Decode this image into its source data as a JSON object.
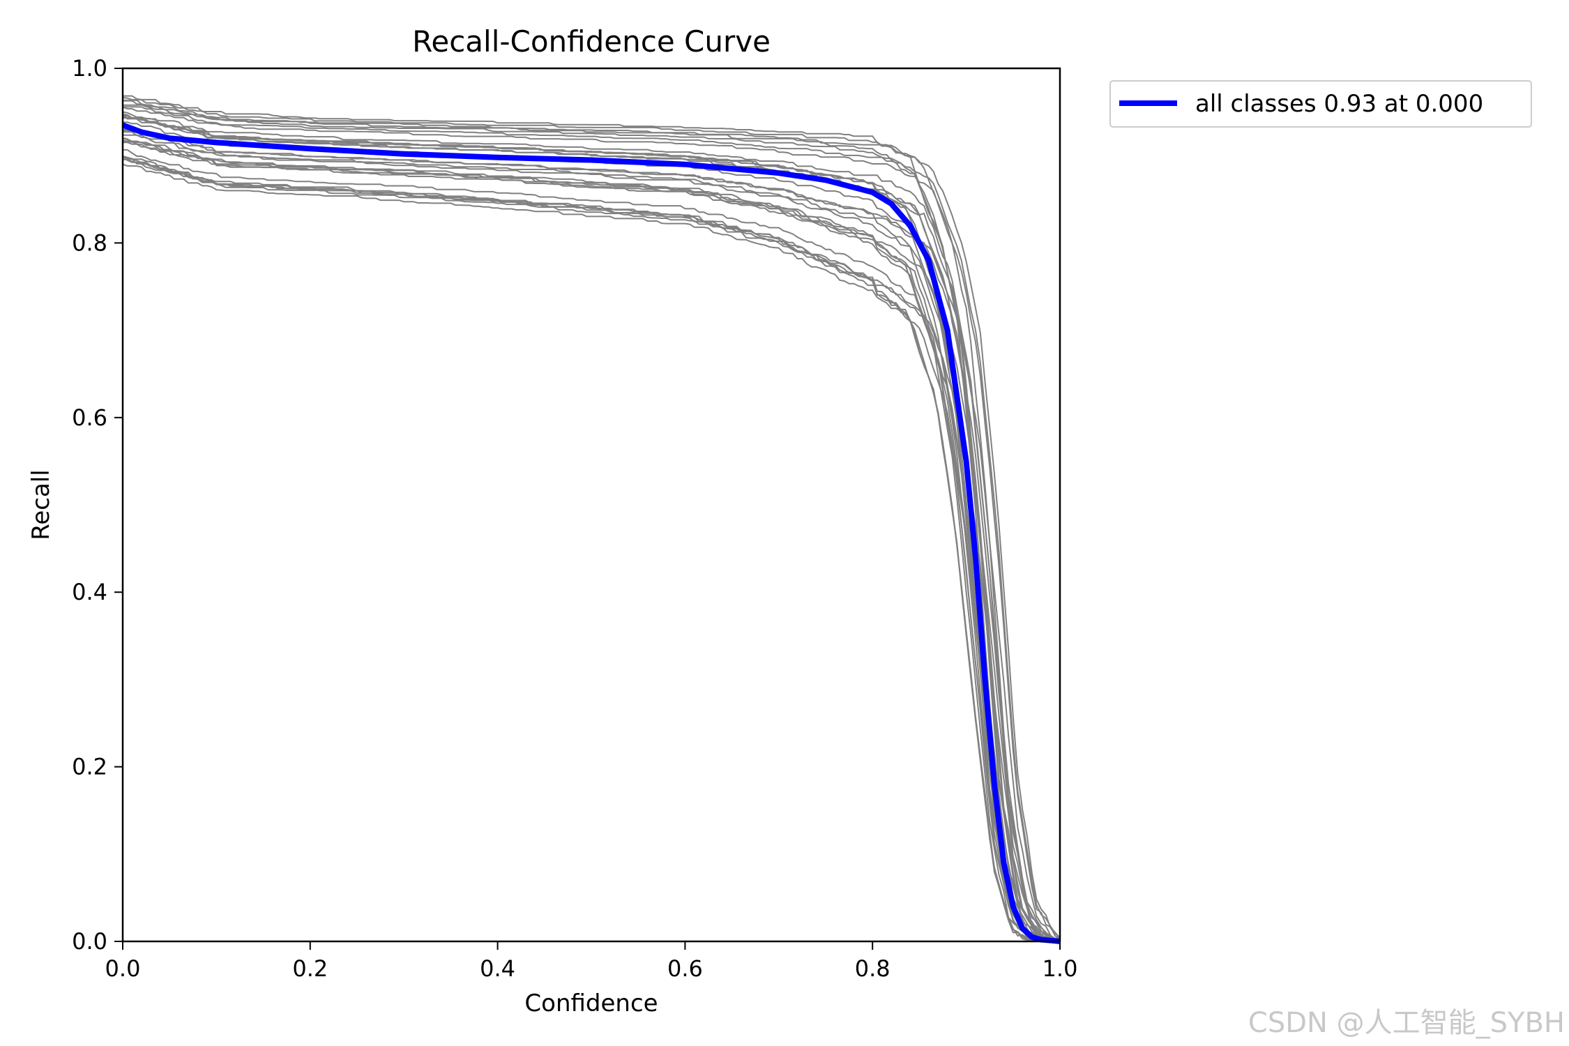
{
  "chart_data": {
    "type": "line",
    "title": "Recall-Confidence Curve",
    "xlabel": "Confidence",
    "ylabel": "Recall",
    "xlim": [
      0,
      1
    ],
    "ylim": [
      0,
      1
    ],
    "xticks": [
      "0.0",
      "0.2",
      "0.4",
      "0.6",
      "0.8",
      "1.0"
    ],
    "yticks": [
      "0.0",
      "0.2",
      "0.4",
      "0.6",
      "0.8",
      "1.0"
    ],
    "grid": false,
    "legend_position": "outside-upper-right",
    "series": [
      {
        "name": "all classes 0.93 at 0.000",
        "color": "#0000ff",
        "x": [
          0.0,
          0.02,
          0.05,
          0.1,
          0.2,
          0.3,
          0.4,
          0.5,
          0.6,
          0.7,
          0.75,
          0.8,
          0.82,
          0.84,
          0.86,
          0.88,
          0.9,
          0.91,
          0.92,
          0.93,
          0.94,
          0.95,
          0.96,
          0.97,
          0.98,
          0.99,
          1.0
        ],
        "y": [
          0.935,
          0.927,
          0.92,
          0.915,
          0.908,
          0.902,
          0.898,
          0.895,
          0.89,
          0.88,
          0.872,
          0.858,
          0.845,
          0.82,
          0.78,
          0.7,
          0.55,
          0.44,
          0.3,
          0.18,
          0.09,
          0.04,
          0.015,
          0.005,
          0.002,
          0.001,
          0.0
        ]
      }
    ],
    "class_curves": {
      "color": "#808080",
      "count": 30,
      "description_values": {
        "x": [
          0.0,
          0.1,
          0.2,
          0.4,
          0.6,
          0.7,
          0.8,
          0.85,
          0.88,
          0.9,
          0.92,
          0.94,
          0.96,
          0.98,
          1.0
        ],
        "y_high": [
          0.97,
          0.95,
          0.945,
          0.94,
          0.935,
          0.93,
          0.925,
          0.9,
          0.82,
          0.72,
          0.5,
          0.2,
          0.05,
          0.01,
          0.0
        ],
        "y_low": [
          0.89,
          0.86,
          0.855,
          0.84,
          0.82,
          0.79,
          0.74,
          0.7,
          0.6,
          0.45,
          0.25,
          0.08,
          0.01,
          0.0,
          0.0
        ]
      }
    }
  },
  "watermark": "CSDN @人工智能_SYBH"
}
